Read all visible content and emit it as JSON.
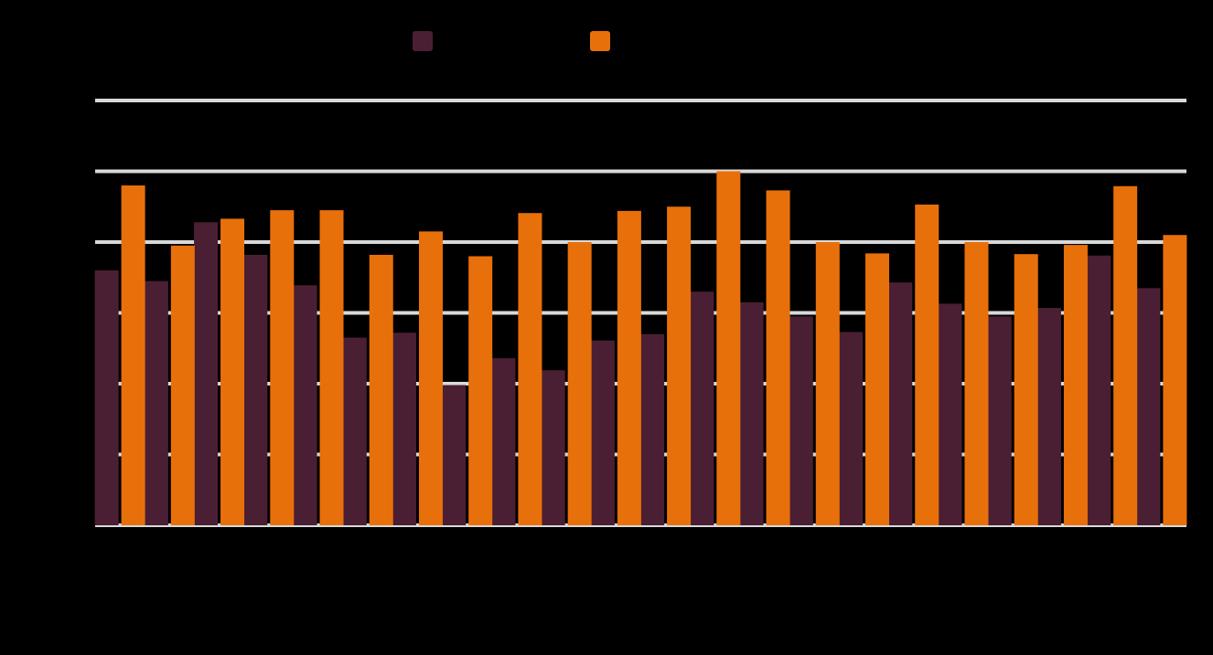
{
  "chart_data": {
    "type": "bar",
    "title": "",
    "xlabel": "",
    "ylabel": "",
    "ylim": [
      0,
      6
    ],
    "grid": true,
    "legend_position": "top",
    "categories": [
      "",
      "",
      "",
      "",
      "",
      "",
      "",
      "",
      "",
      "",
      "",
      "",
      "",
      "",
      "",
      "",
      "",
      "",
      "",
      "",
      "",
      ""
    ],
    "series": [
      {
        "color": "#4a1f33",
        "values": [
          3.6,
          3.45,
          4.28,
          3.82,
          3.39,
          2.65,
          2.72,
          1.98,
          2.36,
          2.19,
          2.61,
          2.7,
          3.3,
          3.15,
          2.95,
          2.73,
          3.43,
          3.13,
          2.95,
          3.07,
          3.81,
          3.35
        ]
      },
      {
        "color": "#e8700a",
        "values": [
          4.8,
          3.95,
          4.33,
          4.45,
          4.45,
          3.82,
          4.15,
          3.8,
          4.41,
          4.0,
          4.44,
          4.5,
          5.0,
          4.73,
          4.0,
          3.84,
          4.53,
          4.0,
          3.83,
          3.96,
          4.79,
          4.1
        ]
      }
    ]
  }
}
